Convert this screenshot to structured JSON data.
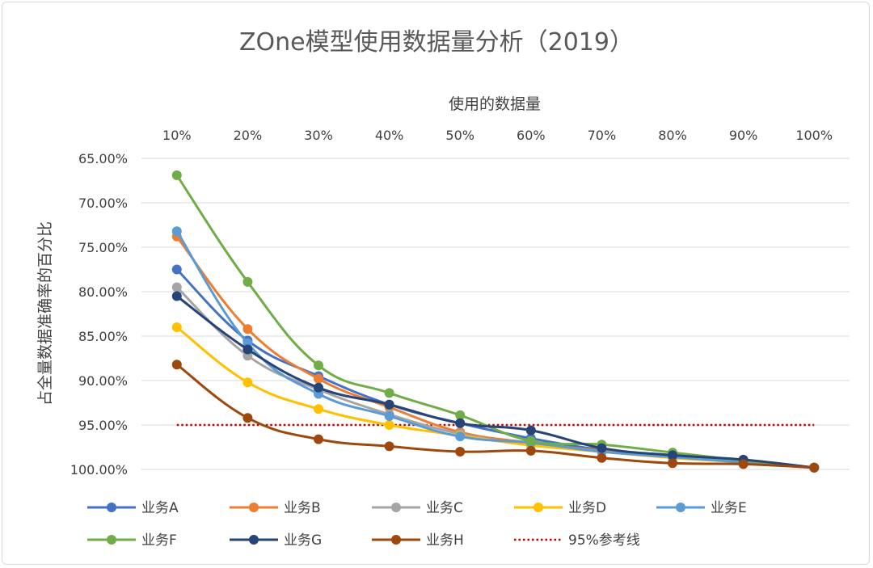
{
  "chart_data": {
    "type": "line",
    "title": "ZOne模型使用数据量分析（2019）",
    "xlabel": "使用的数据量",
    "ylabel": "占全量数据准确率的百分比",
    "categories": [
      "10%",
      "20%",
      "30%",
      "40%",
      "50%",
      "60%",
      "70%",
      "80%",
      "90%",
      "100%"
    ],
    "y_ticks": [
      "65.00%",
      "70.00%",
      "75.00%",
      "80.00%",
      "85.00%",
      "90.00%",
      "95.00%",
      "100.00%"
    ],
    "ylim": [
      65,
      100
    ],
    "y_reversed": true,
    "x_axis_position": "top",
    "grid": true,
    "legend_position": "bottom",
    "series": [
      {
        "name": "业务A",
        "color": "#4472C4",
        "values": [
          77.5,
          85.5,
          89.5,
          92.7,
          94.8,
          96.5,
          97.8,
          98.5,
          99.0,
          99.8
        ]
      },
      {
        "name": "业务B",
        "color": "#ED7D31",
        "values": [
          73.8,
          84.2,
          89.8,
          93.0,
          95.8,
          97.0,
          97.9,
          98.6,
          99.2,
          99.8
        ]
      },
      {
        "name": "业务C",
        "color": "#A5A5A5",
        "values": [
          79.5,
          87.2,
          91.0,
          93.8,
          96.0,
          97.2,
          98.0,
          98.6,
          99.2,
          99.8
        ]
      },
      {
        "name": "业务D",
        "color": "#FFC000",
        "values": [
          84.0,
          90.2,
          93.2,
          95.0,
          96.2,
          97.3,
          98.0,
          98.7,
          99.2,
          99.8
        ]
      },
      {
        "name": "业务E",
        "color": "#5B9BD5",
        "values": [
          73.2,
          85.8,
          91.5,
          94.0,
          96.3,
          97.0,
          98.0,
          98.6,
          99.2,
          99.8
        ]
      },
      {
        "name": "业务F",
        "color": "#70AD47",
        "values": [
          66.9,
          78.9,
          88.3,
          91.4,
          93.9,
          96.8,
          97.2,
          98.1,
          99.0,
          99.8
        ]
      },
      {
        "name": "业务G",
        "color": "#264478",
        "values": [
          80.5,
          86.5,
          90.8,
          92.7,
          94.8,
          95.6,
          97.6,
          98.4,
          98.9,
          99.8
        ]
      },
      {
        "name": "业务H",
        "color": "#9E480E",
        "values": [
          88.2,
          94.2,
          96.6,
          97.4,
          98.0,
          97.9,
          98.7,
          99.3,
          99.4,
          99.8
        ]
      }
    ],
    "reference_line": {
      "name": "95%参考线",
      "value": 95.0,
      "color": "#C00000",
      "style": "dotted"
    }
  }
}
